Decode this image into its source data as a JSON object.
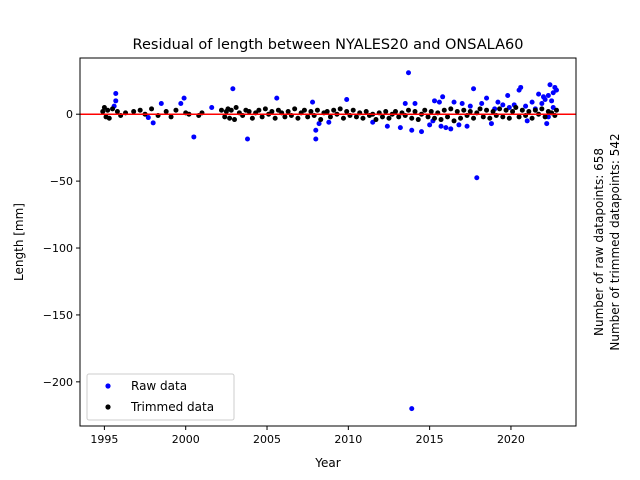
{
  "chart_data": {
    "type": "scatter",
    "title": "Residual of length between NYALES20 and ONSALA60",
    "xlabel": "Year",
    "ylabel": "Length [mm]",
    "xlim": [
      1993.5,
      2024.0
    ],
    "ylim": [
      -233,
      42
    ],
    "x_ticks": [
      1995,
      2000,
      2005,
      2010,
      2015,
      2020
    ],
    "x_tick_labels": [
      "1995",
      "2000",
      "2005",
      "2010",
      "2015",
      "2020"
    ],
    "y_ticks": [
      0,
      -50,
      -100,
      -150,
      -200
    ],
    "y_tick_labels": [
      "0",
      "−50",
      "−100",
      "−150",
      "−200"
    ],
    "reference_line": {
      "y": 0,
      "color": "#ff0000"
    },
    "legend": {
      "placement": "lower-left",
      "entries": [
        {
          "label": "Raw data",
          "color": "#0000ff"
        },
        {
          "label": "Trimmed data",
          "color": "#000000"
        }
      ]
    },
    "side_annotations": [
      "Number of raw datapoints: 658",
      "Number of trimmed datapoints: 542"
    ],
    "grid": false,
    "series": [
      {
        "name": "Raw data",
        "color": "#0000ff",
        "points": [
          [
            1995.7,
            15.5
          ],
          [
            1995.7,
            10
          ],
          [
            1995.6,
            6
          ],
          [
            1997.7,
            -2.5
          ],
          [
            1998.0,
            -6.5
          ],
          [
            1998.5,
            8
          ],
          [
            1999.7,
            8
          ],
          [
            1999.9,
            12
          ],
          [
            2000.5,
            -17
          ],
          [
            2001.6,
            5
          ],
          [
            2002.9,
            19
          ],
          [
            2003.8,
            -18.5
          ],
          [
            2005.6,
            12
          ],
          [
            2007.8,
            9
          ],
          [
            2008.0,
            -18.5
          ],
          [
            2008.0,
            -12
          ],
          [
            2008.2,
            -7
          ],
          [
            2008.8,
            -6
          ],
          [
            2009.9,
            11
          ],
          [
            2011.5,
            -6
          ],
          [
            2012.4,
            -9
          ],
          [
            2013.2,
            -10
          ],
          [
            2013.5,
            8
          ],
          [
            2013.7,
            31
          ],
          [
            2013.9,
            -12
          ],
          [
            2013.9,
            -220
          ],
          [
            2014.1,
            8
          ],
          [
            2014.5,
            -13
          ],
          [
            2015.0,
            -8
          ],
          [
            2015.2,
            -5
          ],
          [
            2015.3,
            10
          ],
          [
            2015.6,
            9
          ],
          [
            2015.7,
            -9
          ],
          [
            2015.8,
            13
          ],
          [
            2016.0,
            -10
          ],
          [
            2016.3,
            -11
          ],
          [
            2016.5,
            9
          ],
          [
            2016.8,
            -8
          ],
          [
            2017.0,
            8
          ],
          [
            2017.3,
            -9
          ],
          [
            2017.5,
            6
          ],
          [
            2017.7,
            19
          ],
          [
            2017.9,
            -47.5
          ],
          [
            2018.2,
            8
          ],
          [
            2018.5,
            12
          ],
          [
            2018.8,
            -7
          ],
          [
            2019.2,
            9
          ],
          [
            2019.5,
            7
          ],
          [
            2019.8,
            14
          ],
          [
            2020.2,
            7
          ],
          [
            2020.5,
            18
          ],
          [
            2020.6,
            20
          ],
          [
            2021.0,
            -5
          ],
          [
            2021.3,
            9
          ],
          [
            2021.7,
            15
          ],
          [
            2021.9,
            8
          ],
          [
            2022.0,
            13
          ],
          [
            2022.1,
            11
          ],
          [
            2022.2,
            -7
          ],
          [
            2022.3,
            14
          ],
          [
            2022.4,
            22
          ],
          [
            2022.5,
            10
          ],
          [
            2022.6,
            16
          ],
          [
            2022.7,
            20
          ],
          [
            2022.8,
            18
          ],
          [
            2022.3,
            -2
          ],
          [
            2022.6,
            5
          ],
          [
            2021.5,
            4
          ],
          [
            2020.9,
            6
          ],
          [
            2019.9,
            5
          ],
          [
            2019.0,
            4
          ]
        ]
      },
      {
        "name": "Trimmed data",
        "color": "#000000",
        "points": [
          [
            1994.9,
            2
          ],
          [
            1995.0,
            5
          ],
          [
            1995.1,
            -2
          ],
          [
            1995.2,
            3
          ],
          [
            1995.3,
            -3
          ],
          [
            1995.5,
            4
          ],
          [
            1995.8,
            2
          ],
          [
            1996.0,
            -1
          ],
          [
            1996.3,
            1
          ],
          [
            1996.8,
            2
          ],
          [
            1997.2,
            3
          ],
          [
            1997.5,
            0
          ],
          [
            1997.9,
            4
          ],
          [
            1998.3,
            -1
          ],
          [
            1998.8,
            2
          ],
          [
            1999.1,
            -2
          ],
          [
            1999.4,
            3
          ],
          [
            2000.0,
            1
          ],
          [
            2000.2,
            0
          ],
          [
            2000.8,
            -1
          ],
          [
            2001.0,
            1
          ],
          [
            2002.2,
            3
          ],
          [
            2002.4,
            -2
          ],
          [
            2002.5,
            2
          ],
          [
            2002.6,
            4
          ],
          [
            2002.7,
            -3
          ],
          [
            2002.8,
            3
          ],
          [
            2003.0,
            -4
          ],
          [
            2003.1,
            5
          ],
          [
            2003.3,
            1
          ],
          [
            2003.5,
            -1
          ],
          [
            2003.7,
            3
          ],
          [
            2003.9,
            2
          ],
          [
            2004.1,
            -3
          ],
          [
            2004.3,
            1
          ],
          [
            2004.5,
            3
          ],
          [
            2004.7,
            -2
          ],
          [
            2004.9,
            4
          ],
          [
            2005.1,
            0
          ],
          [
            2005.3,
            2
          ],
          [
            2005.5,
            -3
          ],
          [
            2005.7,
            3
          ],
          [
            2005.9,
            1
          ],
          [
            2006.1,
            -2
          ],
          [
            2006.3,
            2
          ],
          [
            2006.5,
            -1
          ],
          [
            2006.7,
            4
          ],
          [
            2006.9,
            -3
          ],
          [
            2007.1,
            1
          ],
          [
            2007.3,
            3
          ],
          [
            2007.5,
            -2
          ],
          [
            2007.7,
            2
          ],
          [
            2007.9,
            -1
          ],
          [
            2008.1,
            3
          ],
          [
            2008.3,
            -4
          ],
          [
            2008.5,
            1
          ],
          [
            2008.7,
            2
          ],
          [
            2008.9,
            -2
          ],
          [
            2009.1,
            3
          ],
          [
            2009.3,
            0
          ],
          [
            2009.5,
            4
          ],
          [
            2009.7,
            -3
          ],
          [
            2009.9,
            2
          ],
          [
            2010.1,
            -1
          ],
          [
            2010.3,
            3
          ],
          [
            2010.5,
            -2
          ],
          [
            2010.7,
            1
          ],
          [
            2010.9,
            -3
          ],
          [
            2011.1,
            2
          ],
          [
            2011.3,
            -1
          ],
          [
            2011.5,
            0
          ],
          [
            2011.7,
            -4
          ],
          [
            2011.9,
            1
          ],
          [
            2012.1,
            -2
          ],
          [
            2012.3,
            2
          ],
          [
            2012.5,
            -3
          ],
          [
            2012.7,
            0
          ],
          [
            2012.9,
            2
          ],
          [
            2013.1,
            -2
          ],
          [
            2013.3,
            1
          ],
          [
            2013.5,
            -1
          ],
          [
            2013.7,
            3
          ],
          [
            2013.9,
            -3
          ],
          [
            2014.1,
            2
          ],
          [
            2014.3,
            -4
          ],
          [
            2014.5,
            0
          ],
          [
            2014.7,
            3
          ],
          [
            2014.9,
            -2
          ],
          [
            2015.1,
            2
          ],
          [
            2015.3,
            -3
          ],
          [
            2015.5,
            1
          ],
          [
            2015.7,
            -4
          ],
          [
            2015.9,
            3
          ],
          [
            2016.1,
            -2
          ],
          [
            2016.3,
            4
          ],
          [
            2016.5,
            -5
          ],
          [
            2016.7,
            2
          ],
          [
            2016.9,
            -3
          ],
          [
            2017.1,
            3
          ],
          [
            2017.3,
            -1
          ],
          [
            2017.5,
            2
          ],
          [
            2017.7,
            -3
          ],
          [
            2017.9,
            1
          ],
          [
            2018.1,
            4
          ],
          [
            2018.3,
            -2
          ],
          [
            2018.5,
            3
          ],
          [
            2018.7,
            -3
          ],
          [
            2018.9,
            2
          ],
          [
            2019.1,
            -1
          ],
          [
            2019.3,
            4
          ],
          [
            2019.5,
            -2
          ],
          [
            2019.7,
            3
          ],
          [
            2019.9,
            -3
          ],
          [
            2020.1,
            2
          ],
          [
            2020.3,
            5
          ],
          [
            2020.5,
            -2
          ],
          [
            2020.7,
            3
          ],
          [
            2020.9,
            -1
          ],
          [
            2021.1,
            2
          ],
          [
            2021.3,
            -3
          ],
          [
            2021.5,
            3
          ],
          [
            2021.7,
            0
          ],
          [
            2021.9,
            4
          ],
          [
            2022.1,
            -2
          ],
          [
            2022.3,
            2
          ],
          [
            2022.5,
            1
          ],
          [
            2022.7,
            -1
          ],
          [
            2022.8,
            3
          ]
        ]
      }
    ]
  }
}
